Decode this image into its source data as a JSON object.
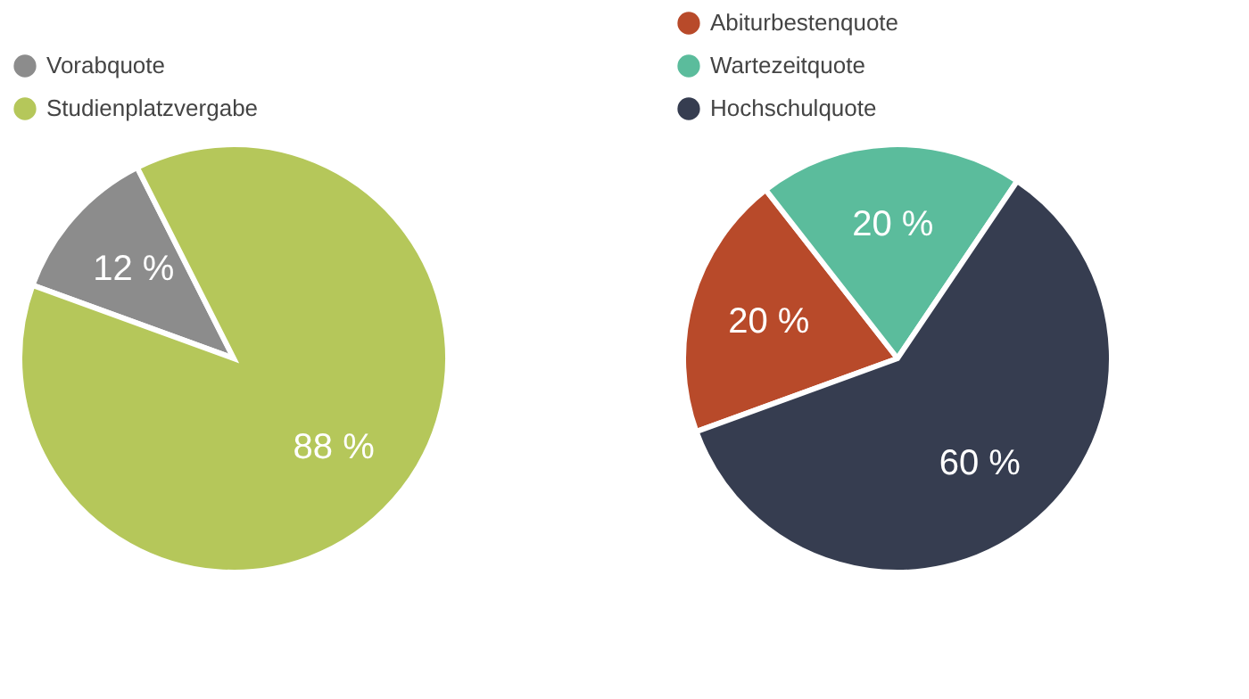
{
  "chart_data": [
    {
      "type": "pie",
      "categories": [
        "Vorabquote",
        "Studienplatzvergabe"
      ],
      "values": [
        12,
        88
      ],
      "colors": [
        "#8c8c8c",
        "#b5c75a"
      ],
      "value_labels": [
        "12 %",
        "88 %"
      ],
      "legend": "top left"
    },
    {
      "type": "pie",
      "categories": [
        "Abiturbestenquote",
        "Wartezeitquote",
        "Hochschulquote"
      ],
      "values": [
        20,
        20,
        60
      ],
      "colors": [
        "#b84a2a",
        "#5bbc9c",
        "#363d50"
      ],
      "value_labels": [
        "20 %",
        "20 %",
        "60 %"
      ],
      "legend": "top left"
    }
  ]
}
